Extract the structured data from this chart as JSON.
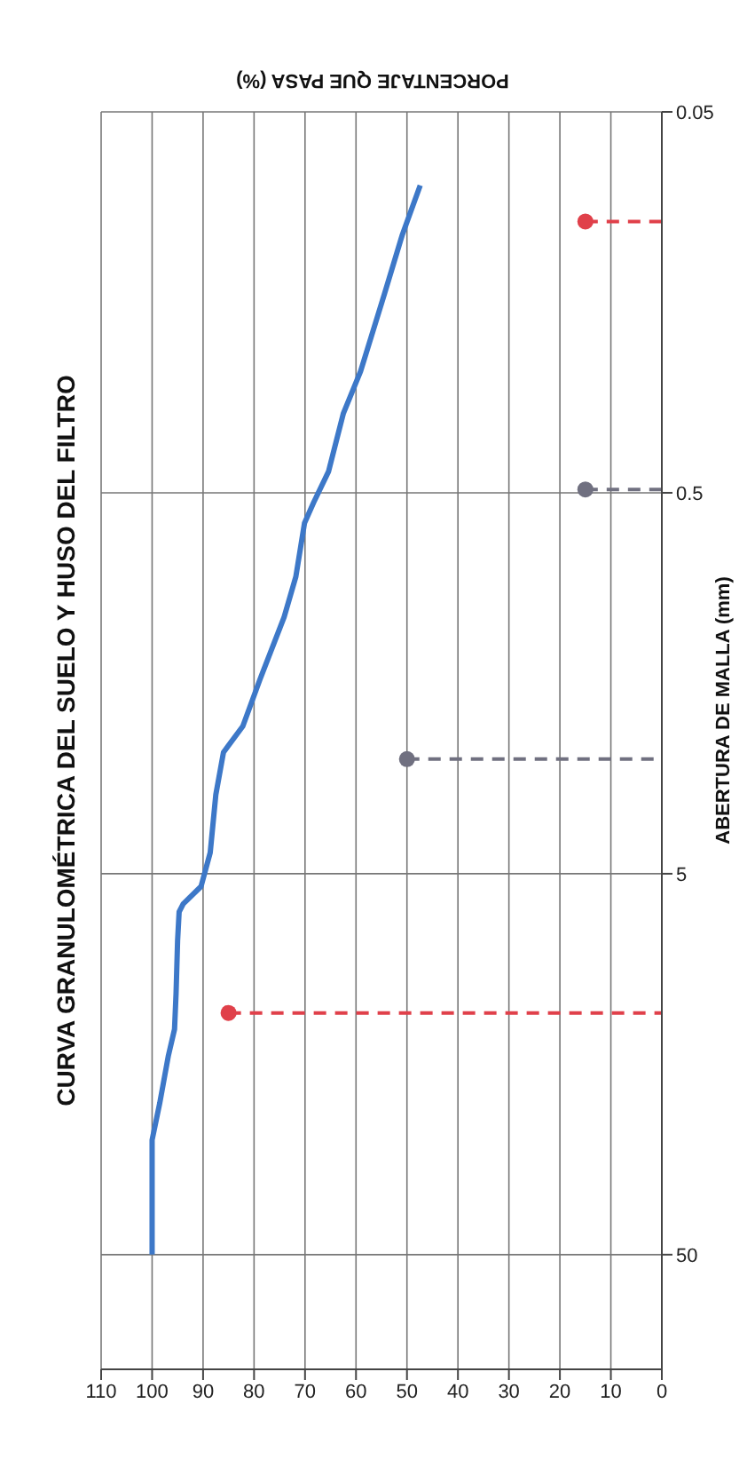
{
  "chart_data": {
    "type": "line",
    "title": "CURVA GRANULOMÉTRICA DEL SUELO Y HUSO DEL FILTRO",
    "xlabel": "PORCENTAJE  QUE PASA (%)",
    "ylabel": "ABERTURA DE MALLA (mm)",
    "log": "y",
    "grid": true,
    "xlim": [
      110,
      0
    ],
    "xticks": [
      110,
      100,
      90,
      80,
      70,
      60,
      50,
      40,
      30,
      20,
      10,
      0
    ],
    "ylim": [
      100,
      0.05
    ],
    "yticks": [
      50,
      5,
      0.5,
      0.05
    ],
    "series": [
      {
        "type": "line",
        "color": "#3d78c8",
        "marker": "none",
        "line_style": "solid",
        "x": [
          100,
          100,
          98.5,
          96.8,
          95.6,
          95.3,
          95,
          94.7,
          93.9,
          90.4,
          88.6,
          87.5,
          86,
          82.2,
          78.8,
          74.1,
          71.8,
          70.1,
          68.3,
          65.4,
          62.5,
          59.1,
          54.4,
          50.9,
          47.4
        ],
        "values": [
          50,
          25,
          20,
          15,
          12.8,
          10.3,
          7.5,
          6.3,
          6.0,
          5.4,
          4.4,
          3.1,
          2.4,
          2.05,
          1.54,
          1.06,
          0.83,
          0.6,
          0.53,
          0.44,
          0.31,
          0.24,
          0.15,
          0.105,
          0.078
        ]
      },
      {
        "type": "scatter",
        "color": "#e0404a",
        "marker": "circle",
        "x": [
          85,
          15
        ],
        "values": [
          11.6,
          0.097
        ]
      },
      {
        "type": "scatter",
        "color": "#707080",
        "marker": "circle",
        "x": [
          50,
          15
        ],
        "values": [
          2.5,
          0.49
        ]
      },
      {
        "type": "line",
        "color": "#e0404a",
        "marker": "none",
        "line_style": "dashed",
        "x": [
          85,
          0
        ],
        "values": [
          11.6,
          11.6
        ]
      },
      {
        "type": "line",
        "color": "#e0404a",
        "marker": "none",
        "line_style": "dashed",
        "x": [
          15,
          0
        ],
        "values": [
          0.097,
          0.097
        ]
      },
      {
        "type": "line",
        "color": "#707080",
        "marker": "none",
        "line_style": "dashed",
        "x": [
          50,
          0
        ],
        "values": [
          2.5,
          2.5
        ]
      },
      {
        "type": "line",
        "color": "#707080",
        "marker": "none",
        "line_style": "dashed",
        "x": [
          15,
          0
        ],
        "values": [
          0.49,
          0.49
        ]
      }
    ]
  }
}
